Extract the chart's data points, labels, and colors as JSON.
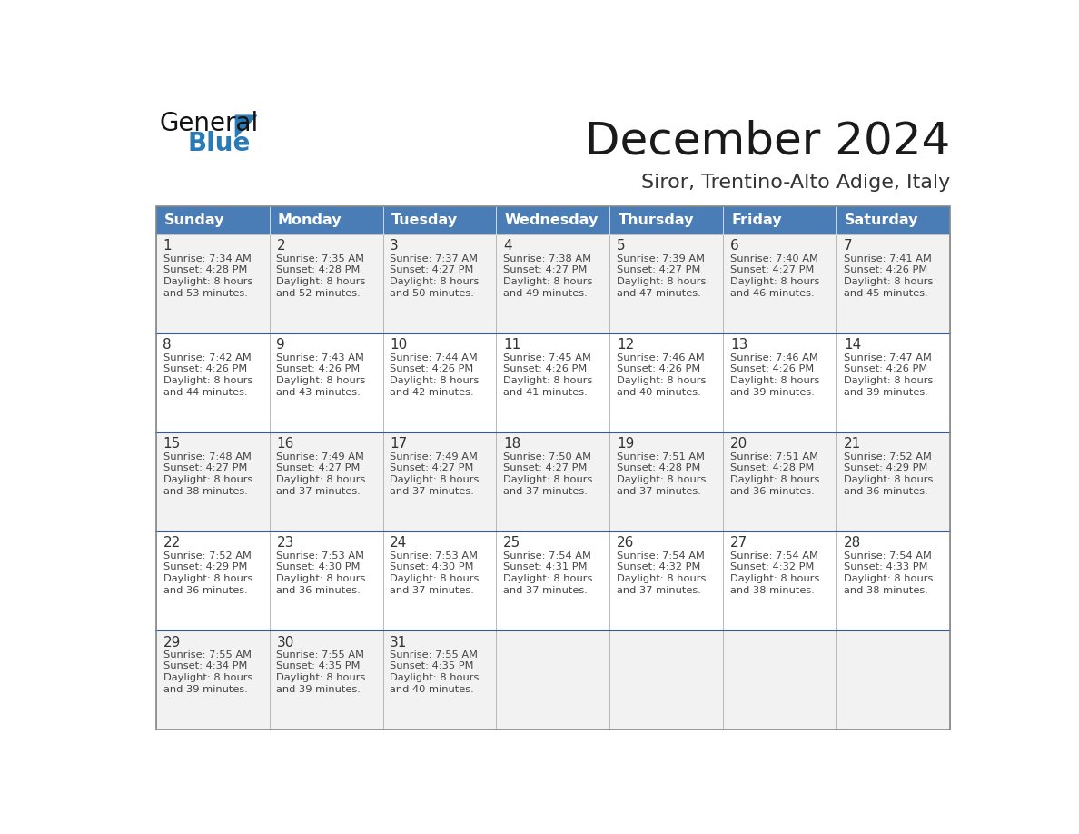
{
  "title": "December 2024",
  "subtitle": "Siror, Trentino-Alto Adige, Italy",
  "days_of_week": [
    "Sunday",
    "Monday",
    "Tuesday",
    "Wednesday",
    "Thursday",
    "Friday",
    "Saturday"
  ],
  "header_bg": "#4A7DB5",
  "header_text": "#FFFFFF",
  "cell_bg": "#F2F2F2",
  "cell_bg_alt": "#FFFFFF",
  "cell_border": "#AAAAAA",
  "row_separator": "#3A5A8A",
  "day_num_color": "#333333",
  "info_color": "#444444",
  "title_color": "#1a1a1a",
  "subtitle_color": "#333333",
  "calendar_data": [
    [
      {
        "day": 1,
        "sunrise": "7:34 AM",
        "sunset": "4:28 PM",
        "daylight": "8 hours and 53 minutes."
      },
      {
        "day": 2,
        "sunrise": "7:35 AM",
        "sunset": "4:28 PM",
        "daylight": "8 hours and 52 minutes."
      },
      {
        "day": 3,
        "sunrise": "7:37 AM",
        "sunset": "4:27 PM",
        "daylight": "8 hours and 50 minutes."
      },
      {
        "day": 4,
        "sunrise": "7:38 AM",
        "sunset": "4:27 PM",
        "daylight": "8 hours and 49 minutes."
      },
      {
        "day": 5,
        "sunrise": "7:39 AM",
        "sunset": "4:27 PM",
        "daylight": "8 hours and 47 minutes."
      },
      {
        "day": 6,
        "sunrise": "7:40 AM",
        "sunset": "4:27 PM",
        "daylight": "8 hours and 46 minutes."
      },
      {
        "day": 7,
        "sunrise": "7:41 AM",
        "sunset": "4:26 PM",
        "daylight": "8 hours and 45 minutes."
      }
    ],
    [
      {
        "day": 8,
        "sunrise": "7:42 AM",
        "sunset": "4:26 PM",
        "daylight": "8 hours and 44 minutes."
      },
      {
        "day": 9,
        "sunrise": "7:43 AM",
        "sunset": "4:26 PM",
        "daylight": "8 hours and 43 minutes."
      },
      {
        "day": 10,
        "sunrise": "7:44 AM",
        "sunset": "4:26 PM",
        "daylight": "8 hours and 42 minutes."
      },
      {
        "day": 11,
        "sunrise": "7:45 AM",
        "sunset": "4:26 PM",
        "daylight": "8 hours and 41 minutes."
      },
      {
        "day": 12,
        "sunrise": "7:46 AM",
        "sunset": "4:26 PM",
        "daylight": "8 hours and 40 minutes."
      },
      {
        "day": 13,
        "sunrise": "7:46 AM",
        "sunset": "4:26 PM",
        "daylight": "8 hours and 39 minutes."
      },
      {
        "day": 14,
        "sunrise": "7:47 AM",
        "sunset": "4:26 PM",
        "daylight": "8 hours and 39 minutes."
      }
    ],
    [
      {
        "day": 15,
        "sunrise": "7:48 AM",
        "sunset": "4:27 PM",
        "daylight": "8 hours and 38 minutes."
      },
      {
        "day": 16,
        "sunrise": "7:49 AM",
        "sunset": "4:27 PM",
        "daylight": "8 hours and 37 minutes."
      },
      {
        "day": 17,
        "sunrise": "7:49 AM",
        "sunset": "4:27 PM",
        "daylight": "8 hours and 37 minutes."
      },
      {
        "day": 18,
        "sunrise": "7:50 AM",
        "sunset": "4:27 PM",
        "daylight": "8 hours and 37 minutes."
      },
      {
        "day": 19,
        "sunrise": "7:51 AM",
        "sunset": "4:28 PM",
        "daylight": "8 hours and 37 minutes."
      },
      {
        "day": 20,
        "sunrise": "7:51 AM",
        "sunset": "4:28 PM",
        "daylight": "8 hours and 36 minutes."
      },
      {
        "day": 21,
        "sunrise": "7:52 AM",
        "sunset": "4:29 PM",
        "daylight": "8 hours and 36 minutes."
      }
    ],
    [
      {
        "day": 22,
        "sunrise": "7:52 AM",
        "sunset": "4:29 PM",
        "daylight": "8 hours and 36 minutes."
      },
      {
        "day": 23,
        "sunrise": "7:53 AM",
        "sunset": "4:30 PM",
        "daylight": "8 hours and 36 minutes."
      },
      {
        "day": 24,
        "sunrise": "7:53 AM",
        "sunset": "4:30 PM",
        "daylight": "8 hours and 37 minutes."
      },
      {
        "day": 25,
        "sunrise": "7:54 AM",
        "sunset": "4:31 PM",
        "daylight": "8 hours and 37 minutes."
      },
      {
        "day": 26,
        "sunrise": "7:54 AM",
        "sunset": "4:32 PM",
        "daylight": "8 hours and 37 minutes."
      },
      {
        "day": 27,
        "sunrise": "7:54 AM",
        "sunset": "4:32 PM",
        "daylight": "8 hours and 38 minutes."
      },
      {
        "day": 28,
        "sunrise": "7:54 AM",
        "sunset": "4:33 PM",
        "daylight": "8 hours and 38 minutes."
      }
    ],
    [
      {
        "day": 29,
        "sunrise": "7:55 AM",
        "sunset": "4:34 PM",
        "daylight": "8 hours and 39 minutes."
      },
      {
        "day": 30,
        "sunrise": "7:55 AM",
        "sunset": "4:35 PM",
        "daylight": "8 hours and 39 minutes."
      },
      {
        "day": 31,
        "sunrise": "7:55 AM",
        "sunset": "4:35 PM",
        "daylight": "8 hours and 40 minutes."
      },
      null,
      null,
      null,
      null
    ]
  ],
  "n_rows": 5,
  "n_cols": 7,
  "logo_text_general": "General",
  "logo_text_blue": "Blue",
  "logo_color_general": "#111111",
  "logo_color_blue": "#2A7AB5",
  "logo_triangle_color": "#2A7AB5"
}
